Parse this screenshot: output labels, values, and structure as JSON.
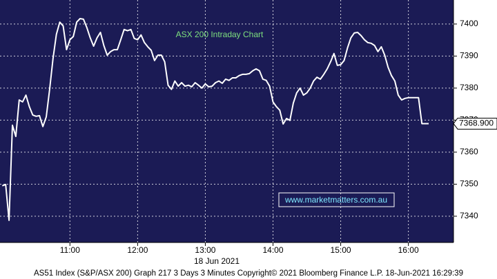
{
  "chart_data": {
    "type": "line",
    "title": "ASX 200 Intraday Chart",
    "watermark": "www.marketmatters.com.au",
    "x_sublabel": "18 Jun 2021",
    "footer": "AS51 Index (S&P/ASX 200) Graph 217 3 Days 3 Minutes Copyright© 2021 Bloomberg Finance L.P. 18-Jun-2021 16:29:39",
    "color": "#ffffff",
    "background": "#1b1b55",
    "grid": true,
    "x": [
      600,
      603,
      606,
      609,
      612,
      615,
      618,
      621,
      624,
      627,
      630,
      633,
      636,
      639,
      642,
      645,
      648,
      651,
      654,
      657,
      660,
      663,
      666,
      669,
      672,
      675,
      678,
      681,
      684,
      687,
      690,
      693,
      696,
      699,
      702,
      705,
      708,
      711,
      714,
      717,
      720,
      723,
      726,
      729,
      732,
      735,
      738,
      741,
      744,
      747,
      750,
      753,
      756,
      759,
      762,
      765,
      768,
      771,
      774,
      777,
      780,
      783,
      786,
      789,
      792,
      795,
      798,
      801,
      804,
      807,
      810,
      813,
      816,
      819,
      822,
      825,
      828,
      831,
      834,
      837,
      840,
      843,
      846,
      849,
      852,
      855,
      858,
      861,
      864,
      867,
      870,
      873,
      876,
      879,
      882,
      885,
      888,
      891,
      894,
      897,
      900,
      903,
      906,
      909,
      912,
      915,
      918,
      921,
      924,
      927,
      930,
      933,
      936,
      939,
      942,
      945,
      948,
      951,
      954,
      957,
      960,
      963,
      966,
      969,
      972,
      975,
      978
    ],
    "values": [
      7349.5,
      7349.9,
      7338.7,
      7368.4,
      7364.9,
      7376.3,
      7375.7,
      7377.8,
      7374.2,
      7371.6,
      7371.2,
      7371.4,
      7368.0,
      7371.0,
      7379.6,
      7389.2,
      7396.8,
      7400.6,
      7399.4,
      7392.0,
      7395.1,
      7396.1,
      7400.6,
      7401.7,
      7401.5,
      7398.9,
      7395.7,
      7393.1,
      7395.7,
      7397.4,
      7393.3,
      7390.3,
      7391.4,
      7392.0,
      7392.0,
      7395.1,
      7398.3,
      7397.9,
      7398.3,
      7395.5,
      7395.1,
      7396.6,
      7394.2,
      7392.9,
      7391.8,
      7388.6,
      7390.3,
      7390.3,
      7388.2,
      7380.9,
      7379.6,
      7382.2,
      7380.6,
      7381.7,
      7380.6,
      7380.9,
      7380.4,
      7381.7,
      7380.9,
      7380.0,
      7381.3,
      7380.4,
      7380.6,
      7381.7,
      7382.2,
      7381.5,
      7382.8,
      7382.4,
      7383.2,
      7383.2,
      7383.9,
      7384.3,
      7384.3,
      7384.5,
      7385.4,
      7386.0,
      7385.4,
      7382.8,
      7382.4,
      7380.6,
      7375.7,
      7374.2,
      7373.1,
      7368.8,
      7370.5,
      7369.9,
      7375.3,
      7378.5,
      7380.0,
      7377.8,
      7378.5,
      7380.0,
      7382.2,
      7383.4,
      7382.8,
      7384.3,
      7386.0,
      7388.2,
      7390.8,
      7387.1,
      7387.3,
      7388.6,
      7392.5,
      7395.7,
      7397.2,
      7397.4,
      7396.4,
      7395.1,
      7394.2,
      7394.0,
      7393.3,
      7391.4,
      7392.9,
      7390.3,
      7386.5,
      7383.9,
      7382.2,
      7377.8,
      7376.3,
      7376.8,
      7377.0,
      7377.0,
      7377.0,
      7377.0,
      7368.9,
      7368.9,
      7368.9
    ],
    "last_value_tag": {
      "value": 7368.9,
      "label": "7368.900"
    },
    "xlim": [
      598,
      1000
    ],
    "ylim": [
      7331.8,
      7407.5
    ],
    "xticks": [
      {
        "value": 660,
        "label": "11:00"
      },
      {
        "value": 720,
        "label": "12:00"
      },
      {
        "value": 780,
        "label": "13:00"
      },
      {
        "value": 840,
        "label": "14:00"
      },
      {
        "value": 900,
        "label": "15:00"
      },
      {
        "value": 960,
        "label": "16:00"
      }
    ],
    "yticks": [
      7340,
      7350,
      7360,
      7370,
      7380,
      7390,
      7400
    ]
  }
}
